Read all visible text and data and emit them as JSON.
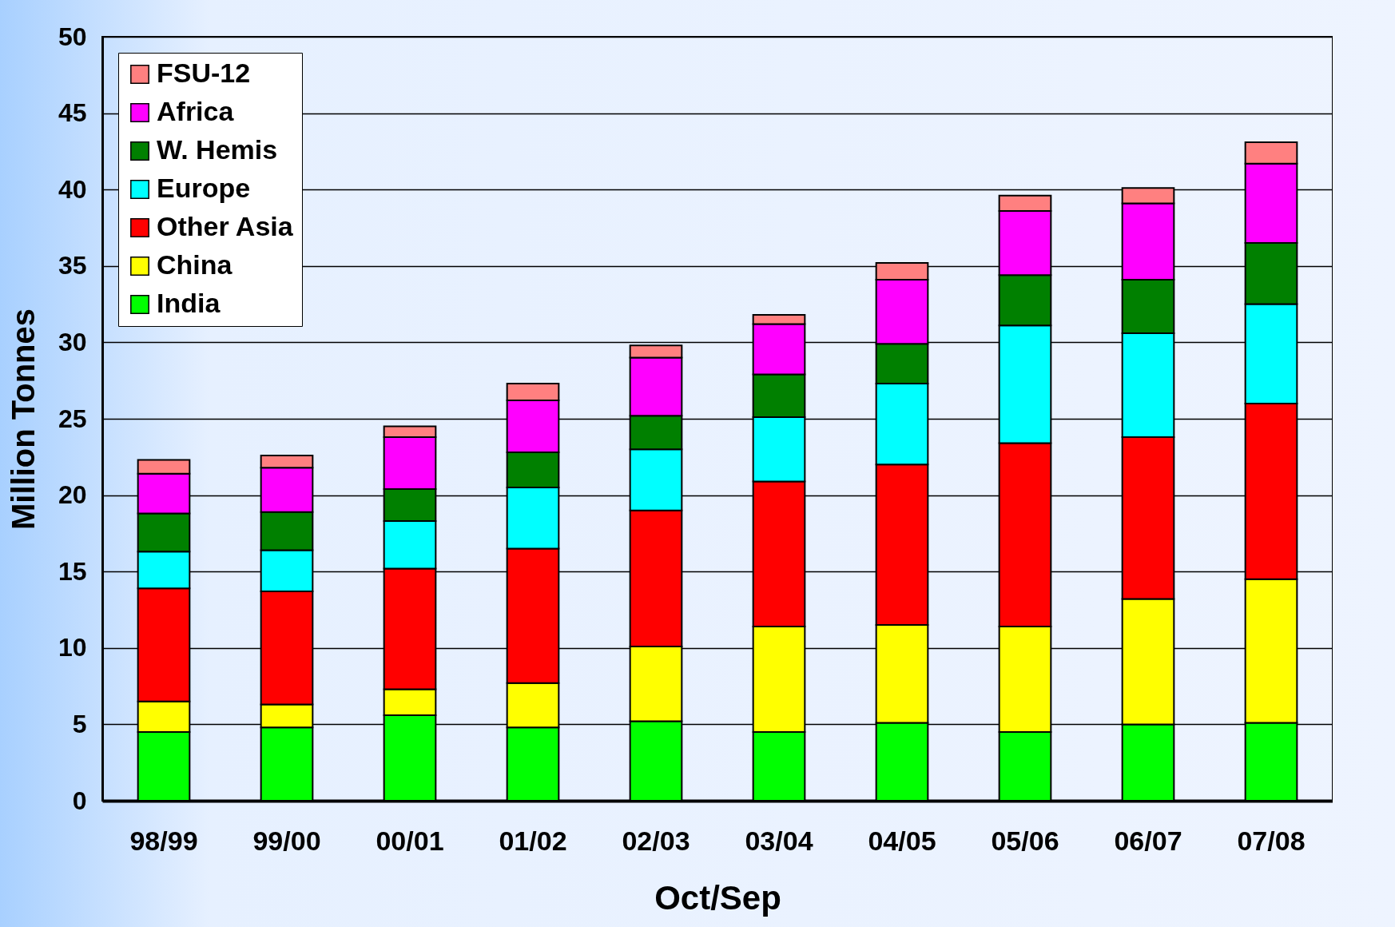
{
  "chart_data": {
    "type": "bar",
    "stacked": true,
    "xlabel": "Oct/Sep",
    "ylabel": "Million Tonnes",
    "categories": [
      "98/99",
      "99/00",
      "00/01",
      "01/02",
      "02/03",
      "03/04",
      "04/05",
      "05/06",
      "06/07",
      "07/08"
    ],
    "series": [
      {
        "name": "India",
        "color": "#00ff00",
        "values": [
          4.5,
          4.8,
          5.6,
          4.8,
          5.2,
          4.5,
          5.1,
          4.5,
          5.0,
          5.1
        ]
      },
      {
        "name": "China",
        "color": "#ffff00",
        "values": [
          2.0,
          1.5,
          1.7,
          2.9,
          4.9,
          6.9,
          6.4,
          6.9,
          8.2,
          9.4
        ]
      },
      {
        "name": "Other Asia",
        "color": "#ff0000",
        "values": [
          7.4,
          7.4,
          7.9,
          8.8,
          8.9,
          9.5,
          10.5,
          12.0,
          10.6,
          11.5
        ]
      },
      {
        "name": "Europe",
        "color": "#00ffff",
        "values": [
          2.4,
          2.7,
          3.1,
          4.0,
          4.0,
          4.2,
          5.3,
          7.7,
          6.8,
          6.5
        ]
      },
      {
        "name": "W. Hemis",
        "color": "#008000",
        "values": [
          2.5,
          2.5,
          2.1,
          2.3,
          2.2,
          2.8,
          2.6,
          3.3,
          3.5,
          4.0
        ]
      },
      {
        "name": "Africa",
        "color": "#ff00ff",
        "values": [
          2.6,
          2.9,
          3.4,
          3.4,
          3.8,
          3.3,
          4.2,
          4.2,
          5.0,
          5.2
        ]
      },
      {
        "name": "FSU-12",
        "color": "#ff8080",
        "values": [
          0.9,
          0.8,
          0.7,
          1.1,
          0.8,
          0.6,
          1.1,
          1.0,
          1.0,
          1.4
        ]
      }
    ],
    "ylim": [
      0,
      50
    ],
    "yticks": [
      0,
      5,
      10,
      15,
      20,
      25,
      30,
      35,
      40,
      45,
      50
    ],
    "grid": "y",
    "legend": "top left"
  }
}
